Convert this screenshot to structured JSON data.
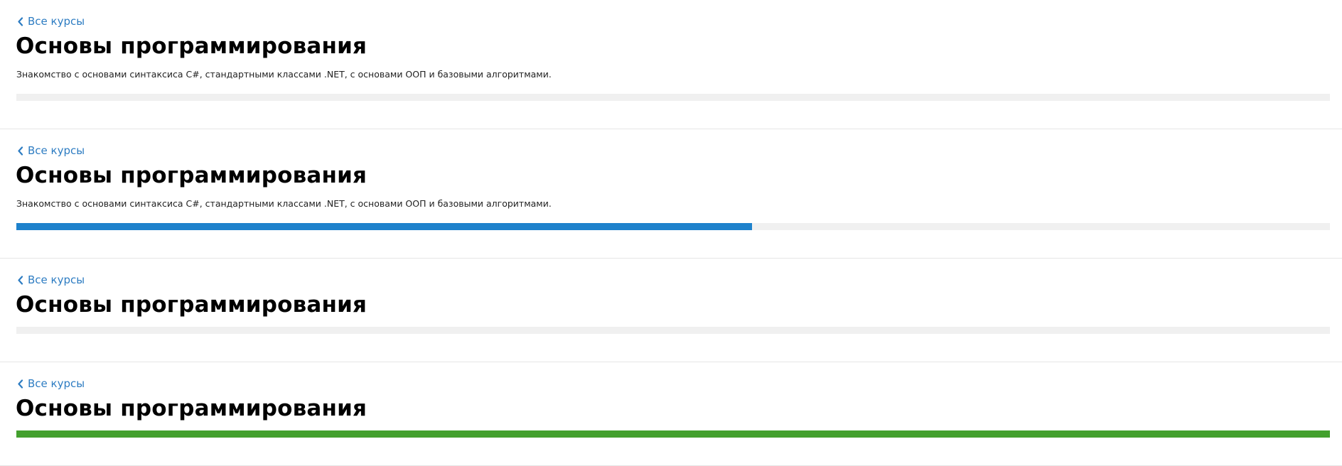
{
  "courses": [
    {
      "back_label": "Все курсы",
      "title": "Основы программирования",
      "description": "Знакомство с основами синтаксиса C#, стандартными классами .NET, с основами ООП и базовыми алгоритмами.",
      "progress": 0,
      "progress_color": "#f0f0f0"
    },
    {
      "back_label": "Все курсы",
      "title": "Основы программирования",
      "description": "Знакомство с основами синтаксиса C#, стандартными классами .NET, с основами ООП и базовыми алгоритмами.",
      "progress": 0.56,
      "progress_color": "#1e82cc"
    },
    {
      "back_label": "Все курсы",
      "title": "Основы программирования",
      "progress": 0,
      "progress_color": "#f0f0f0"
    },
    {
      "back_label": "Все курсы",
      "title": "Основы программирования",
      "progress": 1.0,
      "progress_color": "#43a02e"
    }
  ],
  "colors": {
    "link": "#2d7cc2",
    "track": "#f0f0f0",
    "divider": "#e6e6e6"
  },
  "icons": {
    "back": "chevron-left-icon"
  }
}
